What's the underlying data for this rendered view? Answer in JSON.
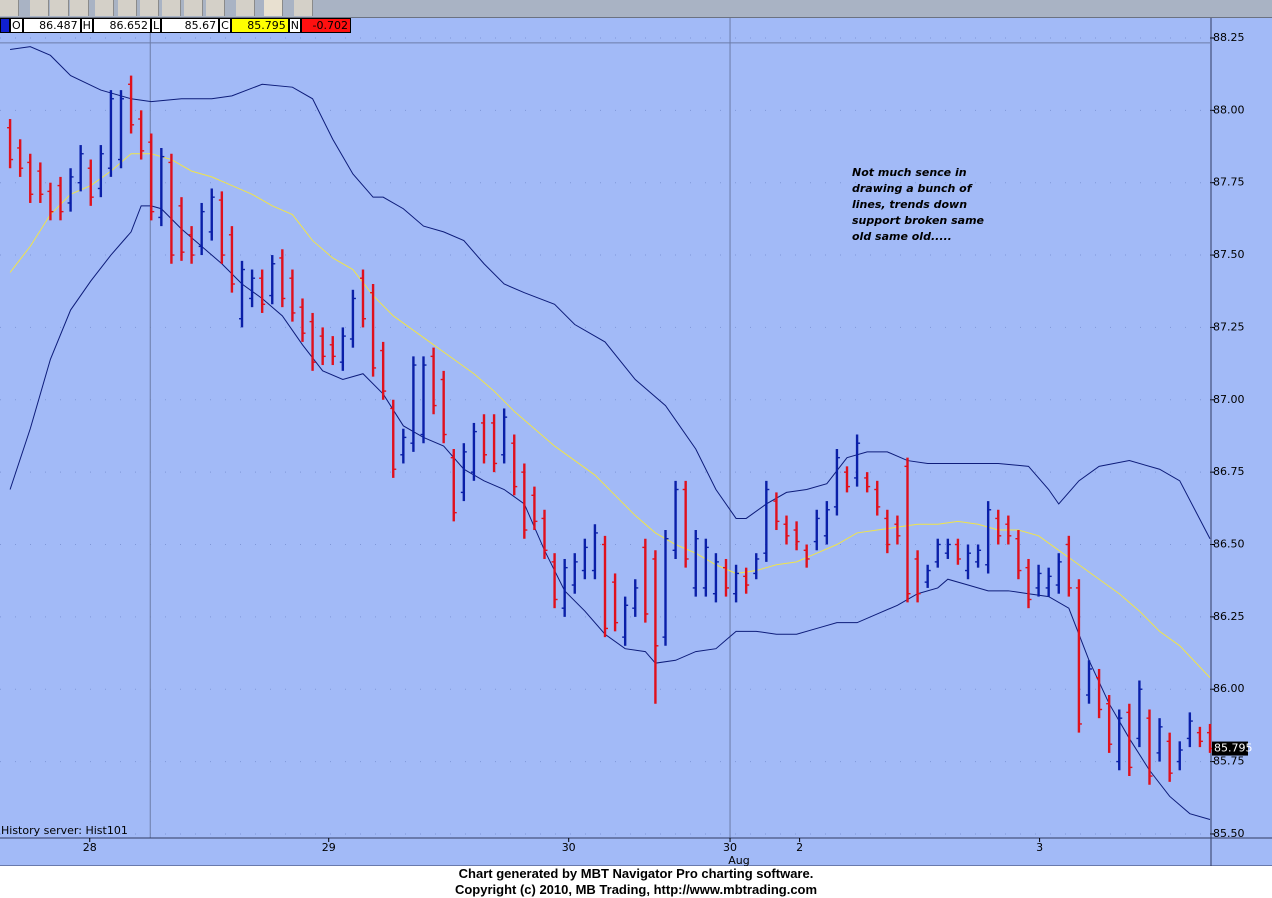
{
  "chart_data": {
    "type": "ohlc",
    "up_color": "#0a1fa8",
    "down_color": "#e0101c",
    "background": "#a2baf7",
    "ylim": [
      85.486,
      88.319
    ],
    "yticks": [
      {
        "value": 85.5,
        "label": "85.50"
      },
      85.75,
      {
        "value": 86.0,
        "label": "86.00"
      },
      86.25,
      {
        "value": 86.5,
        "label": "86.50"
      },
      86.75,
      {
        "value": 87.0,
        "label": "87.00"
      },
      87.25,
      {
        "value": 87.5,
        "label": "87.50"
      },
      87.75,
      {
        "value": 88.0,
        "label": "88.00"
      },
      88.25
    ],
    "grid": true,
    "xlim": [
      -1,
      119
    ],
    "xticks": [
      {
        "value": 7.9,
        "label": "28"
      },
      {
        "value": 31.6,
        "label": "29"
      },
      {
        "value": 55.4,
        "label": "30"
      },
      {
        "value": 71.4,
        "label": "30"
      },
      {
        "value": 78.3,
        "label": "2"
      },
      {
        "value": 102.1,
        "label": "3"
      }
    ],
    "month_label": "Aug",
    "vlines": [
      13.9,
      71.4
    ],
    "hlines": [
      88.233
    ],
    "last_price": "85.795",
    "bars": [
      [
        87.94,
        87.97,
        87.8,
        87.83
      ],
      [
        87.87,
        87.9,
        87.77,
        87.8
      ],
      [
        87.82,
        87.85,
        87.68,
        87.71
      ],
      [
        87.79,
        87.82,
        87.68,
        87.71
      ],
      [
        87.72,
        87.75,
        87.62,
        87.65
      ],
      [
        87.74,
        87.77,
        87.62,
        87.65
      ],
      [
        87.68,
        87.8,
        87.65,
        87.77
      ],
      [
        87.75,
        87.88,
        87.72,
        87.85
      ],
      [
        87.8,
        87.83,
        87.67,
        87.7
      ],
      [
        87.73,
        87.88,
        87.7,
        87.85
      ],
      [
        87.8,
        88.07,
        87.77,
        88.04
      ],
      [
        87.83,
        88.07,
        87.8,
        88.04
      ],
      [
        88.09,
        88.12,
        87.92,
        87.95
      ],
      [
        87.97,
        88.0,
        87.83,
        87.86
      ],
      [
        87.89,
        87.92,
        87.62,
        87.65
      ],
      [
        87.63,
        87.87,
        87.6,
        87.84
      ],
      [
        87.82,
        87.85,
        87.47,
        87.5
      ],
      [
        87.67,
        87.7,
        87.48,
        87.51
      ],
      [
        87.57,
        87.6,
        87.47,
        87.5
      ],
      [
        87.53,
        87.68,
        87.5,
        87.65
      ],
      [
        87.58,
        87.73,
        87.55,
        87.7
      ],
      [
        87.69,
        87.72,
        87.47,
        87.5
      ],
      [
        87.57,
        87.6,
        87.37,
        87.4
      ],
      [
        87.28,
        87.48,
        87.25,
        87.45
      ],
      [
        87.35,
        87.45,
        87.32,
        87.42
      ],
      [
        87.42,
        87.45,
        87.3,
        87.33
      ],
      [
        87.36,
        87.5,
        87.33,
        87.47
      ],
      [
        87.49,
        87.52,
        87.32,
        87.35
      ],
      [
        87.42,
        87.45,
        87.27,
        87.3
      ],
      [
        87.32,
        87.35,
        87.2,
        87.23
      ],
      [
        87.27,
        87.3,
        87.1,
        87.13
      ],
      [
        87.22,
        87.25,
        87.12,
        87.15
      ],
      [
        87.19,
        87.22,
        87.12,
        87.15
      ],
      [
        87.13,
        87.25,
        87.1,
        87.22
      ],
      [
        87.21,
        87.38,
        87.18,
        87.35
      ],
      [
        87.42,
        87.45,
        87.25,
        87.28
      ],
      [
        87.37,
        87.4,
        87.08,
        87.11
      ],
      [
        87.17,
        87.2,
        87.0,
        87.03
      ],
      [
        86.97,
        87.0,
        86.73,
        86.76
      ],
      [
        86.81,
        86.9,
        86.78,
        86.87
      ],
      [
        86.85,
        87.15,
        86.82,
        87.12
      ],
      [
        86.88,
        87.15,
        86.85,
        87.12
      ],
      [
        87.15,
        87.18,
        86.95,
        86.98
      ],
      [
        87.07,
        87.1,
        86.85,
        86.88
      ],
      [
        86.8,
        86.83,
        86.58,
        86.61
      ],
      [
        86.68,
        86.85,
        86.65,
        86.82
      ],
      [
        86.75,
        86.92,
        86.72,
        86.89
      ],
      [
        86.92,
        86.95,
        86.78,
        86.81
      ],
      [
        86.92,
        86.95,
        86.75,
        86.78
      ],
      [
        86.81,
        86.97,
        86.78,
        86.94
      ],
      [
        86.85,
        86.88,
        86.67,
        86.7
      ],
      [
        86.75,
        86.78,
        86.52,
        86.55
      ],
      [
        86.67,
        86.7,
        86.55,
        86.58
      ],
      [
        86.59,
        86.62,
        86.45,
        86.48
      ],
      [
        86.44,
        86.47,
        86.28,
        86.31
      ],
      [
        86.28,
        86.45,
        86.25,
        86.42
      ],
      [
        86.36,
        86.47,
        86.33,
        86.44
      ],
      [
        86.41,
        86.52,
        86.38,
        86.49
      ],
      [
        86.41,
        86.57,
        86.38,
        86.54
      ],
      [
        86.5,
        86.53,
        86.18,
        86.21
      ],
      [
        86.37,
        86.4,
        86.2,
        86.23
      ],
      [
        86.18,
        86.32,
        86.15,
        86.29
      ],
      [
        86.28,
        86.38,
        86.25,
        86.35
      ],
      [
        86.49,
        86.52,
        86.23,
        86.26
      ],
      [
        86.45,
        86.48,
        85.95,
        86.15
      ],
      [
        86.18,
        86.55,
        86.15,
        86.52
      ],
      [
        86.48,
        86.72,
        86.45,
        86.69
      ],
      [
        86.69,
        86.72,
        86.42,
        86.45
      ],
      [
        86.35,
        86.55,
        86.32,
        86.52
      ],
      [
        86.35,
        86.52,
        86.32,
        86.49
      ],
      [
        86.33,
        86.47,
        86.3,
        86.44
      ],
      [
        86.42,
        86.45,
        86.32,
        86.35
      ],
      [
        86.33,
        86.43,
        86.3,
        86.4
      ],
      [
        86.39,
        86.42,
        86.33,
        86.36
      ],
      [
        86.4,
        86.47,
        86.38,
        86.45
      ],
      [
        86.47,
        86.72,
        86.44,
        86.69
      ],
      [
        86.65,
        86.68,
        86.55,
        86.58
      ],
      [
        86.57,
        86.6,
        86.5,
        86.53
      ],
      [
        86.55,
        86.58,
        86.48,
        86.51
      ],
      [
        86.48,
        86.5,
        86.42,
        86.45
      ],
      [
        86.51,
        86.62,
        86.48,
        86.59
      ],
      [
        86.53,
        86.65,
        86.5,
        86.62
      ],
      [
        86.63,
        86.83,
        86.6,
        86.8
      ],
      [
        86.75,
        86.77,
        86.68,
        86.7
      ],
      [
        86.73,
        86.88,
        86.7,
        86.85
      ],
      [
        86.73,
        86.75,
        86.68,
        86.7
      ],
      [
        86.69,
        86.72,
        86.6,
        86.63
      ],
      [
        86.59,
        86.62,
        86.47,
        86.5
      ],
      [
        86.57,
        86.6,
        86.5,
        86.53
      ],
      [
        86.77,
        86.8,
        86.3,
        86.33
      ],
      [
        86.45,
        86.48,
        86.3,
        86.33
      ],
      [
        86.37,
        86.43,
        86.35,
        86.41
      ],
      [
        86.44,
        86.52,
        86.42,
        86.5
      ],
      [
        86.47,
        86.52,
        86.45,
        86.5
      ],
      [
        86.5,
        86.52,
        86.43,
        86.45
      ],
      [
        86.41,
        86.5,
        86.38,
        86.47
      ],
      [
        86.44,
        86.5,
        86.42,
        86.48
      ],
      [
        86.43,
        86.65,
        86.4,
        86.62
      ],
      [
        86.59,
        86.62,
        86.5,
        86.53
      ],
      [
        86.57,
        86.6,
        86.5,
        86.53
      ],
      [
        86.52,
        86.55,
        86.38,
        86.41
      ],
      [
        86.42,
        86.45,
        86.28,
        86.31
      ],
      [
        86.35,
        86.43,
        86.32,
        86.4
      ],
      [
        86.35,
        86.42,
        86.32,
        86.39
      ],
      [
        86.36,
        86.47,
        86.33,
        86.44
      ],
      [
        86.5,
        86.53,
        86.32,
        86.35
      ],
      [
        86.35,
        86.38,
        85.85,
        85.88
      ],
      [
        85.98,
        86.1,
        85.95,
        86.07
      ],
      [
        86.04,
        86.07,
        85.9,
        85.93
      ],
      [
        85.95,
        85.98,
        85.78,
        85.81
      ],
      [
        85.75,
        85.93,
        85.72,
        85.9
      ],
      [
        85.92,
        85.95,
        85.7,
        85.73
      ],
      [
        85.83,
        86.03,
        85.8,
        86.0
      ],
      [
        85.9,
        85.93,
        85.67,
        85.7
      ],
      [
        85.78,
        85.9,
        85.75,
        85.87
      ],
      [
        85.82,
        85.85,
        85.68,
        85.71
      ],
      [
        85.75,
        85.82,
        85.72,
        85.79
      ],
      [
        85.83,
        85.92,
        85.8,
        85.89
      ],
      [
        85.85,
        85.87,
        85.8,
        85.82
      ],
      [
        85.85,
        85.88,
        85.78,
        85.795
      ]
    ],
    "overlays": [
      {
        "color": "#0d1c7a",
        "x": [
          0,
          2,
          4,
          6,
          9,
          12,
          14,
          17,
          20,
          22,
          25,
          28,
          30,
          32,
          34,
          36,
          37,
          39,
          41,
          43,
          45,
          47,
          49,
          51,
          54,
          56,
          59,
          62,
          65,
          68,
          70,
          72,
          73,
          75,
          77,
          79,
          81,
          83,
          85,
          87,
          89,
          91,
          95,
          98,
          101,
          103,
          104,
          106,
          108,
          111,
          114,
          116,
          119
        ],
        "values": [
          88.21,
          88.22,
          88.19,
          88.12,
          88.07,
          88.04,
          88.03,
          88.04,
          88.04,
          88.05,
          88.09,
          88.08,
          88.04,
          87.9,
          87.78,
          87.7,
          87.7,
          87.66,
          87.6,
          87.58,
          87.55,
          87.47,
          87.4,
          87.37,
          87.33,
          87.26,
          87.2,
          87.07,
          86.98,
          86.83,
          86.69,
          86.59,
          86.59,
          86.64,
          86.68,
          86.69,
          86.71,
          86.8,
          86.82,
          86.82,
          86.79,
          86.78,
          86.78,
          86.78,
          86.77,
          86.69,
          86.64,
          86.72,
          86.77,
          86.79,
          86.76,
          86.72,
          86.52
        ]
      },
      {
        "color": "#0d1c7a",
        "x": [
          0,
          2,
          4,
          6,
          8,
          10,
          12,
          13,
          14,
          15,
          17,
          19,
          21,
          23,
          25,
          27,
          29,
          31,
          33,
          35,
          37,
          39,
          41,
          43,
          45,
          47,
          49,
          51,
          53,
          55,
          57,
          59,
          61,
          63,
          64,
          66,
          68,
          70,
          72,
          74,
          76,
          78,
          80,
          82,
          84,
          86,
          88,
          90,
          92,
          93,
          95,
          97,
          99,
          101,
          103,
          105,
          107,
          109,
          111,
          113,
          115,
          117,
          119
        ],
        "values": [
          86.69,
          86.9,
          87.14,
          87.31,
          87.41,
          87.5,
          87.58,
          87.67,
          87.67,
          87.66,
          87.59,
          87.53,
          87.47,
          87.4,
          87.35,
          87.29,
          87.19,
          87.1,
          87.07,
          87.09,
          87.02,
          86.91,
          86.87,
          86.84,
          86.76,
          86.72,
          86.69,
          86.64,
          86.48,
          86.34,
          86.27,
          86.19,
          86.14,
          86.13,
          86.09,
          86.1,
          86.13,
          86.14,
          86.2,
          86.2,
          86.19,
          86.19,
          86.21,
          86.23,
          86.23,
          86.26,
          86.29,
          86.33,
          86.35,
          86.38,
          86.36,
          86.34,
          86.34,
          86.33,
          86.32,
          86.28,
          86.1,
          85.95,
          85.83,
          85.72,
          85.63,
          85.57,
          85.55
        ]
      },
      {
        "color": "#f0e44a",
        "x": [
          0,
          2,
          4,
          6,
          8,
          10,
          12,
          14,
          16,
          18,
          20,
          22,
          24,
          26,
          28,
          30,
          32,
          34,
          36,
          38,
          40,
          42,
          44,
          46,
          48,
          50,
          52,
          54,
          56,
          58,
          60,
          62,
          64,
          66,
          68,
          70,
          72,
          74,
          76,
          78,
          80,
          82,
          84,
          86,
          88,
          90,
          92,
          94,
          96,
          98,
          100,
          102,
          104,
          106,
          108,
          110,
          112,
          114,
          116,
          119
        ],
        "values": [
          87.44,
          87.53,
          87.64,
          87.71,
          87.74,
          87.79,
          87.85,
          87.85,
          87.83,
          87.79,
          87.77,
          87.74,
          87.71,
          87.67,
          87.64,
          87.55,
          87.49,
          87.45,
          87.36,
          87.29,
          87.24,
          87.19,
          87.14,
          87.09,
          87.03,
          86.96,
          86.9,
          86.84,
          86.79,
          86.74,
          86.67,
          86.6,
          86.54,
          86.5,
          86.47,
          86.43,
          86.4,
          86.41,
          86.43,
          86.44,
          86.47,
          86.5,
          86.54,
          86.55,
          86.56,
          86.57,
          86.57,
          86.58,
          86.57,
          86.55,
          86.55,
          86.53,
          86.48,
          86.43,
          86.38,
          86.33,
          86.27,
          86.2,
          86.15,
          86.04
        ]
      }
    ],
    "annotation": [
      "Not much sence in",
      "drawing a bunch of",
      "lines, trends down",
      "support broken same",
      "old same old....."
    ],
    "server_label": "History server: Hist101"
  },
  "quote": [
    {
      "key": "O",
      "value": "86.487"
    },
    {
      "key": "H",
      "value": "86.652"
    },
    {
      "key": "L",
      "value": "85.67"
    },
    {
      "key": "C",
      "value": "85.795"
    },
    {
      "key": "N",
      "value": "-0.702"
    }
  ],
  "footer": [
    "Chart generated by MBT Navigator Pro charting software.",
    "Copyright (c) 2010, MB Trading, http://www.mbtrading.com"
  ]
}
